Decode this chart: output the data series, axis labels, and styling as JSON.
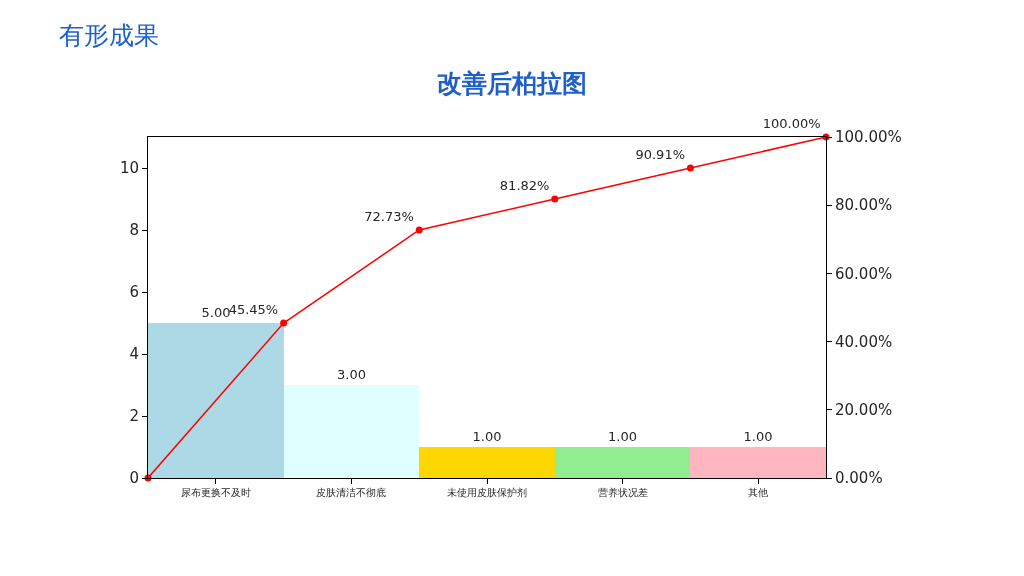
{
  "chart_data": {
    "type": "bar",
    "title": "改善后柏拉图",
    "annotations": [
      "有形成果"
    ],
    "categories": [
      null,
      "尿布更换不及时",
      null,
      "皮肤清洁不彻底",
      null,
      "未使用皮肤保护剂",
      null,
      "营养状况差",
      null,
      "其他",
      null
    ],
    "ylim": [
      0,
      11
    ],
    "yticks": [
      0,
      2,
      4,
      6,
      8,
      10
    ],
    "y2lim": [
      0,
      100
    ],
    "y2ticks": [
      {
        "value": 0,
        "label": "0.00%"
      },
      {
        "value": 20,
        "label": "20.00%"
      },
      {
        "value": 40,
        "label": "40.00%"
      },
      {
        "value": 60,
        "label": "60.00%"
      },
      {
        "value": 80,
        "label": "80.00%"
      },
      {
        "value": 100,
        "label": "100.00%"
      }
    ],
    "series": [
      {
        "colors": [
          null,
          "#add8e6",
          null,
          "#e0ffff",
          null,
          "#ffd700",
          null,
          "#90ee90",
          null,
          "#ffb6c1",
          null
        ],
        "values": [
          null,
          5,
          null,
          3,
          null,
          1,
          null,
          1,
          null,
          1,
          null
        ],
        "value_labels": [
          null,
          "5.00",
          null,
          "3.00",
          null,
          "1.00",
          null,
          "1.00",
          null,
          "1.00",
          null
        ]
      },
      {
        "type": "line",
        "axis": "y2",
        "color": "#ff0000",
        "marker": "circle",
        "line_style": "solid",
        "values": [
          0,
          null,
          45.45,
          null,
          72.73,
          null,
          81.82,
          null,
          90.91,
          null,
          100
        ],
        "value_labels": [
          null,
          null,
          "45.45%",
          null,
          "72.73%",
          null,
          "81.82%",
          null,
          "90.91%",
          null,
          "100.00%"
        ]
      }
    ]
  }
}
